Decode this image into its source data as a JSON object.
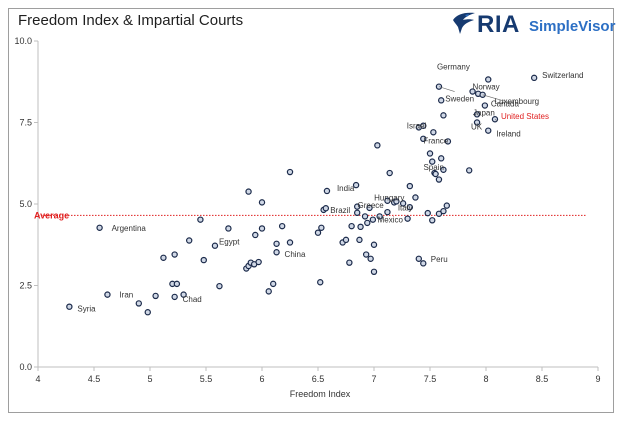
{
  "brand": {
    "name_main": "RIA",
    "name_sub": "SimpleVisor",
    "primary_color": "#163a70",
    "accent_color": "#2c6fc4"
  },
  "chart_data": {
    "type": "scatter",
    "title": "Freedom Index & Impartial Courts",
    "xlabel": "Freedom Index",
    "ylabel": "",
    "xlim": [
      4,
      9
    ],
    "ylim": [
      0,
      10
    ],
    "xticks": [
      "4",
      "4.5",
      "5",
      "5.5",
      "6",
      "6.5",
      "7",
      "7.5",
      "8",
      "8.5",
      "9"
    ],
    "yticks": [
      "0.0",
      "2.5",
      "5.0",
      "7.5",
      "10.0"
    ],
    "xtick_values": [
      4,
      4.5,
      5,
      5.5,
      6,
      6.5,
      7,
      7.5,
      8,
      8.5,
      9
    ],
    "ytick_values": [
      0,
      2.5,
      5,
      7.5,
      10
    ],
    "grid": false,
    "average": {
      "label": "Average",
      "value": 4.65,
      "color": "#e02020"
    },
    "point_style": {
      "fill": "#d0d8e6",
      "stroke": "#1b2a4a"
    },
    "points": [
      {
        "x": 4.28,
        "y": 1.85,
        "label": "Syria"
      },
      {
        "x": 4.55,
        "y": 4.27,
        "label": "Argentina"
      },
      {
        "x": 4.62,
        "y": 2.22,
        "label": "Iran"
      },
      {
        "x": 4.9,
        "y": 1.95
      },
      {
        "x": 4.98,
        "y": 1.68
      },
      {
        "x": 5.05,
        "y": 2.18
      },
      {
        "x": 5.12,
        "y": 3.35
      },
      {
        "x": 5.2,
        "y": 2.55
      },
      {
        "x": 5.24,
        "y": 2.55
      },
      {
        "x": 5.22,
        "y": 2.15,
        "label": "Chad"
      },
      {
        "x": 5.3,
        "y": 2.22
      },
      {
        "x": 5.22,
        "y": 3.45
      },
      {
        "x": 5.35,
        "y": 3.88
      },
      {
        "x": 5.45,
        "y": 4.52
      },
      {
        "x": 5.48,
        "y": 3.28
      },
      {
        "x": 5.58,
        "y": 3.72,
        "label": "Egypt"
      },
      {
        "x": 5.62,
        "y": 2.48
      },
      {
        "x": 5.7,
        "y": 4.25
      },
      {
        "x": 5.86,
        "y": 3.02
      },
      {
        "x": 5.88,
        "y": 3.1
      },
      {
        "x": 5.9,
        "y": 3.2
      },
      {
        "x": 5.93,
        "y": 3.15
      },
      {
        "x": 5.97,
        "y": 3.22
      },
      {
        "x": 5.88,
        "y": 5.38
      },
      {
        "x": 5.94,
        "y": 4.05
      },
      {
        "x": 6.0,
        "y": 4.25
      },
      {
        "x": 6.0,
        "y": 5.05
      },
      {
        "x": 6.06,
        "y": 2.32
      },
      {
        "x": 6.1,
        "y": 2.55
      },
      {
        "x": 6.13,
        "y": 3.52,
        "label": "China"
      },
      {
        "x": 6.13,
        "y": 3.78
      },
      {
        "x": 6.18,
        "y": 4.32
      },
      {
        "x": 6.25,
        "y": 5.98
      },
      {
        "x": 6.25,
        "y": 3.82
      },
      {
        "x": 6.5,
        "y": 4.12
      },
      {
        "x": 6.53,
        "y": 4.27
      },
      {
        "x": 6.52,
        "y": 2.6
      },
      {
        "x": 6.55,
        "y": 4.82
      },
      {
        "x": 6.57,
        "y": 4.87
      },
      {
        "x": 6.58,
        "y": 5.4,
        "label": "India"
      },
      {
        "x": 6.72,
        "y": 3.82
      },
      {
        "x": 6.75,
        "y": 3.9
      },
      {
        "x": 6.78,
        "y": 3.2
      },
      {
        "x": 6.8,
        "y": 4.32
      },
      {
        "x": 6.84,
        "y": 5.58
      },
      {
        "x": 6.85,
        "y": 4.92
      },
      {
        "x": 6.85,
        "y": 4.73,
        "label": "Brazil"
      },
      {
        "x": 6.87,
        "y": 3.9
      },
      {
        "x": 6.88,
        "y": 4.3
      },
      {
        "x": 6.92,
        "y": 4.62
      },
      {
        "x": 6.93,
        "y": 3.45
      },
      {
        "x": 6.94,
        "y": 4.42
      },
      {
        "x": 6.96,
        "y": 4.88,
        "label": "Greece"
      },
      {
        "x": 6.97,
        "y": 3.32
      },
      {
        "x": 6.99,
        "y": 4.52
      },
      {
        "x": 7.0,
        "y": 3.75
      },
      {
        "x": 7.0,
        "y": 2.92
      },
      {
        "x": 7.03,
        "y": 6.8
      },
      {
        "x": 7.05,
        "y": 4.62,
        "label": "Mexico"
      },
      {
        "x": 7.12,
        "y": 4.75
      },
      {
        "x": 7.12,
        "y": 5.1
      },
      {
        "x": 7.14,
        "y": 5.95
      },
      {
        "x": 7.18,
        "y": 5.05,
        "label": "Hungary"
      },
      {
        "x": 7.2,
        "y": 5.08
      },
      {
        "x": 7.26,
        "y": 5.02
      },
      {
        "x": 7.3,
        "y": 4.55
      },
      {
        "x": 7.32,
        "y": 4.9,
        "label": "Italy"
      },
      {
        "x": 7.32,
        "y": 5.55
      },
      {
        "x": 7.37,
        "y": 5.2
      },
      {
        "x": 7.4,
        "y": 3.32,
        "label": "Peru"
      },
      {
        "x": 7.44,
        "y": 3.18
      },
      {
        "x": 7.4,
        "y": 7.35,
        "label": "Israel"
      },
      {
        "x": 7.44,
        "y": 7.4
      },
      {
        "x": 7.44,
        "y": 7.0
      },
      {
        "x": 7.5,
        "y": 6.55
      },
      {
        "x": 7.52,
        "y": 6.3
      },
      {
        "x": 7.54,
        "y": 5.95
      },
      {
        "x": 7.53,
        "y": 7.2,
        "label": "France"
      },
      {
        "x": 7.6,
        "y": 6.4
      },
      {
        "x": 7.62,
        "y": 6.05,
        "label": "Spain"
      },
      {
        "x": 7.62,
        "y": 7.72
      },
      {
        "x": 7.66,
        "y": 6.92
      },
      {
        "x": 7.48,
        "y": 4.72
      },
      {
        "x": 7.52,
        "y": 4.5
      },
      {
        "x": 7.58,
        "y": 4.7
      },
      {
        "x": 7.62,
        "y": 4.78
      },
      {
        "x": 7.65,
        "y": 4.95
      },
      {
        "x": 7.55,
        "y": 5.92
      },
      {
        "x": 7.58,
        "y": 5.75
      },
      {
        "x": 7.58,
        "y": 8.6,
        "label": "Germany"
      },
      {
        "x": 7.6,
        "y": 8.18,
        "label": "Sweden"
      },
      {
        "x": 7.85,
        "y": 6.03
      },
      {
        "x": 7.88,
        "y": 8.45,
        "label": "Norway"
      },
      {
        "x": 7.93,
        "y": 8.38
      },
      {
        "x": 7.92,
        "y": 7.75,
        "label": "Japan"
      },
      {
        "x": 7.92,
        "y": 7.5,
        "label": "UK"
      },
      {
        "x": 7.97,
        "y": 8.35,
        "label": "Luxembourg"
      },
      {
        "x": 7.99,
        "y": 8.02,
        "label": "Canada"
      },
      {
        "x": 8.02,
        "y": 8.82
      },
      {
        "x": 8.02,
        "y": 7.25,
        "label": "Ireland"
      },
      {
        "x": 8.08,
        "y": 7.6,
        "label": "United States",
        "label_color": "#e02020"
      },
      {
        "x": 8.43,
        "y": 8.87,
        "label": "Switzerland"
      }
    ]
  }
}
